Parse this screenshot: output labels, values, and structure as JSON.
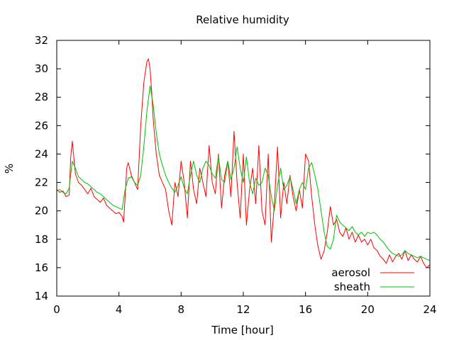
{
  "chart_data": {
    "type": "line",
    "title": "Relative humidity",
    "xlabel": "Time [hour]",
    "ylabel": "%",
    "xlim": [
      0,
      24
    ],
    "ylim": [
      14,
      32
    ],
    "xticks": [
      0,
      4,
      8,
      12,
      16,
      20,
      24
    ],
    "yticks": [
      14,
      16,
      18,
      20,
      22,
      24,
      26,
      28,
      30,
      32
    ],
    "grid": false,
    "legend_position": "bottom-right",
    "series": [
      {
        "name": "aerosol",
        "color": "#ff0000",
        "x": [
          0,
          0.2,
          0.4,
          0.6,
          0.8,
          0.9,
          1.0,
          1.2,
          1.4,
          1.6,
          1.8,
          2.0,
          2.2,
          2.4,
          2.6,
          2.8,
          3.0,
          3.2,
          3.4,
          3.6,
          3.8,
          4.0,
          4.2,
          4.3,
          4.4,
          4.5,
          4.6,
          4.8,
          5.0,
          5.2,
          5.4,
          5.6,
          5.8,
          5.9,
          6.0,
          6.1,
          6.2,
          6.4,
          6.6,
          6.8,
          7.0,
          7.2,
          7.4,
          7.6,
          7.8,
          8.0,
          8.2,
          8.4,
          8.6,
          8.8,
          9.0,
          9.2,
          9.4,
          9.6,
          9.8,
          10.0,
          10.2,
          10.4,
          10.6,
          10.8,
          11.0,
          11.2,
          11.4,
          11.6,
          11.8,
          12.0,
          12.2,
          12.4,
          12.6,
          12.8,
          13.0,
          13.2,
          13.4,
          13.6,
          13.8,
          14.0,
          14.2,
          14.4,
          14.6,
          14.8,
          15.0,
          15.2,
          15.4,
          15.6,
          15.8,
          16.0,
          16.2,
          16.4,
          16.6,
          16.8,
          17.0,
          17.2,
          17.4,
          17.6,
          17.8,
          18.0,
          18.2,
          18.4,
          18.6,
          18.8,
          19.0,
          19.2,
          19.4,
          19.6,
          19.8,
          20.0,
          20.2,
          20.4,
          20.6,
          20.8,
          21.0,
          21.2,
          21.4,
          21.6,
          21.8,
          22.0,
          22.2,
          22.4,
          22.6,
          22.8,
          23.0,
          23.2,
          23.4,
          23.6,
          23.8,
          24.0
        ],
        "values": [
          21.5,
          21.3,
          21.4,
          21.0,
          21.1,
          23.8,
          24.9,
          22.6,
          22.0,
          21.8,
          21.5,
          21.2,
          21.6,
          21.0,
          20.8,
          20.6,
          20.9,
          20.4,
          20.2,
          20.0,
          19.8,
          19.9,
          19.6,
          19.2,
          21.0,
          23.0,
          23.4,
          22.5,
          22.0,
          21.5,
          26.0,
          29.0,
          30.5,
          30.7,
          30.0,
          28.5,
          26.5,
          24.0,
          22.5,
          22.0,
          21.5,
          20.0,
          19.0,
          22.0,
          21.0,
          23.5,
          22.0,
          19.5,
          23.5,
          21.5,
          20.5,
          23.0,
          22.0,
          21.0,
          24.6,
          22.0,
          21.2,
          24.0,
          20.2,
          22.5,
          23.5,
          21.0,
          25.6,
          22.0,
          19.5,
          24.0,
          19.0,
          21.5,
          23.0,
          20.5,
          24.6,
          20.0,
          19.0,
          24.0,
          17.8,
          20.5,
          24.5,
          19.5,
          22.0,
          20.5,
          22.5,
          21.0,
          20.0,
          21.5,
          20.2,
          24.0,
          23.5,
          21.0,
          19.0,
          17.5,
          16.6,
          17.2,
          18.5,
          20.3,
          19.0,
          19.4,
          18.5,
          18.2,
          18.8,
          18.0,
          18.5,
          17.8,
          18.3,
          17.8,
          18.0,
          17.6,
          18.0,
          17.4,
          17.2,
          16.8,
          16.6,
          16.3,
          16.9,
          16.4,
          16.8,
          17.0,
          16.6,
          17.2,
          16.5,
          16.9,
          16.6,
          16.4,
          16.8,
          16.3,
          16.0,
          16.2
        ]
      },
      {
        "name": "sheath",
        "color": "#00c000",
        "x": [
          0,
          0.2,
          0.4,
          0.6,
          0.8,
          1.0,
          1.2,
          1.4,
          1.6,
          1.8,
          2.0,
          2.2,
          2.4,
          2.6,
          2.8,
          3.0,
          3.2,
          3.4,
          3.6,
          3.8,
          4.0,
          4.2,
          4.4,
          4.6,
          4.8,
          5.0,
          5.2,
          5.4,
          5.6,
          5.8,
          6.0,
          6.2,
          6.4,
          6.6,
          6.8,
          7.0,
          7.2,
          7.4,
          7.6,
          7.8,
          8.0,
          8.2,
          8.4,
          8.6,
          8.8,
          9.0,
          9.2,
          9.4,
          9.6,
          9.8,
          10.0,
          10.2,
          10.4,
          10.6,
          10.8,
          11.0,
          11.2,
          11.4,
          11.6,
          11.8,
          12.0,
          12.2,
          12.4,
          12.6,
          12.8,
          13.0,
          13.2,
          13.4,
          13.6,
          13.8,
          14.0,
          14.2,
          14.4,
          14.6,
          14.8,
          15.0,
          15.2,
          15.4,
          15.6,
          15.8,
          16.0,
          16.2,
          16.4,
          16.6,
          16.8,
          17.0,
          17.2,
          17.4,
          17.6,
          17.8,
          18.0,
          18.2,
          18.4,
          18.6,
          18.8,
          19.0,
          19.2,
          19.4,
          19.6,
          19.8,
          20.0,
          20.2,
          20.4,
          20.6,
          20.8,
          21.0,
          21.2,
          21.4,
          21.6,
          21.8,
          22.0,
          22.2,
          22.4,
          22.6,
          22.8,
          23.0,
          23.2,
          23.4,
          23.6,
          23.8,
          24.0
        ],
        "values": [
          21.4,
          21.5,
          21.3,
          21.2,
          21.6,
          23.5,
          23.0,
          22.4,
          22.2,
          22.0,
          21.9,
          21.7,
          21.5,
          21.3,
          21.2,
          21.0,
          20.8,
          20.6,
          20.4,
          20.3,
          20.2,
          20.1,
          21.5,
          22.3,
          22.4,
          22.0,
          21.8,
          22.5,
          24.5,
          27.0,
          28.8,
          27.5,
          25.5,
          24.0,
          23.2,
          22.5,
          22.0,
          21.6,
          21.3,
          21.8,
          22.4,
          21.6,
          21.2,
          22.5,
          23.5,
          22.5,
          22.0,
          23.0,
          23.5,
          23.2,
          22.6,
          22.3,
          23.8,
          22.2,
          22.0,
          23.5,
          22.2,
          23.0,
          24.5,
          23.0,
          22.0,
          23.8,
          22.0,
          21.2,
          22.3,
          21.8,
          22.0,
          23.0,
          22.5,
          21.0,
          20.0,
          21.8,
          23.0,
          21.5,
          21.8,
          22.4,
          21.5,
          20.5,
          21.5,
          22.0,
          21.5,
          23.0,
          23.4,
          22.5,
          21.5,
          20.0,
          18.5,
          17.5,
          17.3,
          18.0,
          19.7,
          19.2,
          19.0,
          18.8,
          18.6,
          18.9,
          18.5,
          18.3,
          18.5,
          18.2,
          18.5,
          18.4,
          18.5,
          18.3,
          18.0,
          17.8,
          17.5,
          17.2,
          17.0,
          16.9,
          16.8,
          16.9,
          17.2,
          17.0,
          16.9,
          16.8,
          16.7,
          16.8,
          16.7,
          16.6,
          16.5
        ]
      }
    ]
  }
}
